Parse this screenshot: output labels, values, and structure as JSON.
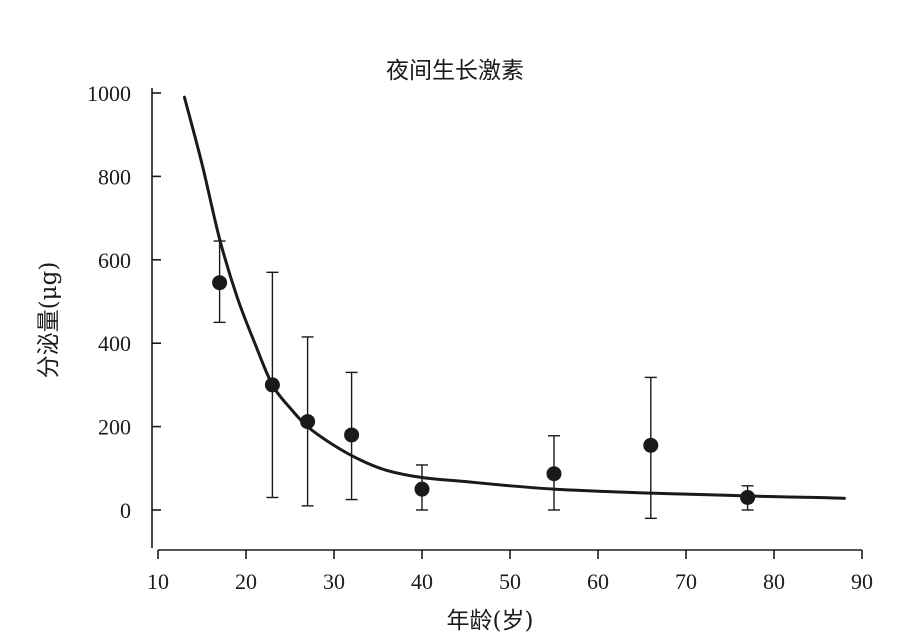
{
  "chart_data": {
    "type": "scatter",
    "title": "夜间生长激素",
    "xlabel": "年龄(岁)",
    "ylabel": "分泌量(μg)",
    "xlim": [
      10,
      90
    ],
    "ylim": [
      -90,
      1000
    ],
    "xticks": [
      10,
      20,
      30,
      40,
      50,
      60,
      70,
      80,
      90
    ],
    "yticks": [
      0,
      200,
      400,
      600,
      800,
      1000
    ],
    "grid": false,
    "series": [
      {
        "kind": "points_with_error",
        "points": [
          {
            "x": 17,
            "y": 545,
            "low": 450,
            "high": 645
          },
          {
            "x": 23,
            "y": 300,
            "low": 30,
            "high": 570
          },
          {
            "x": 27,
            "y": 212,
            "low": 10,
            "high": 415
          },
          {
            "x": 32,
            "y": 180,
            "low": 25,
            "high": 330
          },
          {
            "x": 40,
            "y": 50,
            "low": 0,
            "high": 108
          },
          {
            "x": 55,
            "y": 87,
            "low": 0,
            "high": 178
          },
          {
            "x": 66,
            "y": 155,
            "low": -20,
            "high": 318
          },
          {
            "x": 77,
            "y": 30,
            "low": 0,
            "high": 58
          }
        ]
      },
      {
        "kind": "fit_curve",
        "x": [
          13,
          15,
          17,
          19,
          21,
          23,
          25,
          27,
          30,
          33,
          36,
          40,
          45,
          50,
          55,
          60,
          65,
          70,
          75,
          80,
          85,
          88
        ],
        "y": [
          990,
          830,
          650,
          510,
          400,
          300,
          245,
          200,
          155,
          120,
          95,
          78,
          68,
          58,
          50,
          45,
          41,
          38,
          35,
          32,
          30,
          28
        ]
      }
    ]
  }
}
